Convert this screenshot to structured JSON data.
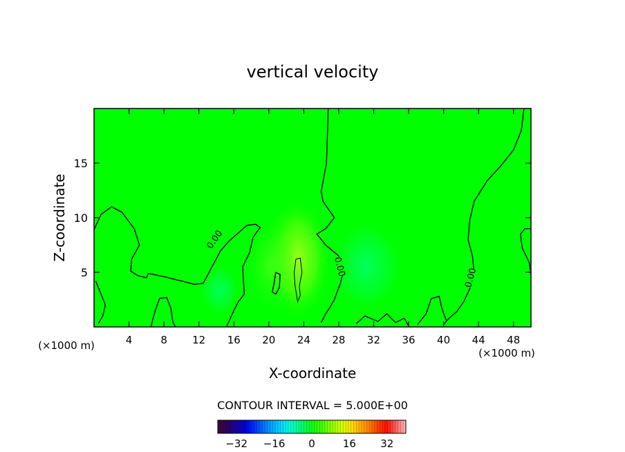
{
  "chart_data": {
    "type": "contour",
    "title": "vertical velocity",
    "xlabel": "X-coordinate",
    "ylabel": "Z-coordinate",
    "x_unit": "(×1000 m)",
    "x_unit_right": "(×1000 m)",
    "xlim": [
      0,
      50
    ],
    "ylim": [
      0,
      20
    ],
    "x_ticks": [
      4,
      8,
      12,
      16,
      20,
      24,
      28,
      32,
      36,
      40,
      44,
      48
    ],
    "y_ticks": [
      5,
      10,
      15
    ],
    "contour_interval_label": "CONTOUR INTERVAL = 5.000E+00",
    "contour_labels": [
      "0.00",
      "0.00",
      "0.00"
    ],
    "colorbar": {
      "range": [
        -40,
        40
      ],
      "ticks": [
        -32,
        -16,
        0,
        16,
        32
      ],
      "colors": [
        "#3a0a3a",
        "#2a0060",
        "#1a00a0",
        "#0000e0",
        "#0030ff",
        "#0070ff",
        "#00a8ff",
        "#00d8ff",
        "#00ffd8",
        "#00ff90",
        "#00ff40",
        "#20ff00",
        "#60ff00",
        "#a0ff00",
        "#d8ff00",
        "#ffe000",
        "#ffb000",
        "#ff8000",
        "#ff4000",
        "#ff1000",
        "#ff6060",
        "#ffb0b0"
      ]
    },
    "field_background_color": "#00ff00",
    "contour_lines": [
      {
        "level": 0,
        "points": [
          [
            0,
            8.9
          ],
          [
            0.8,
            10.3
          ],
          [
            2,
            11
          ],
          [
            3.2,
            10.5
          ],
          [
            4.6,
            9
          ],
          [
            5.2,
            7.5
          ],
          [
            4.3,
            6.2
          ],
          [
            4.2,
            5.1
          ],
          [
            5,
            4.7
          ],
          [
            6,
            4.5
          ],
          [
            6.2,
            4.9
          ],
          [
            8,
            4.6
          ],
          [
            10,
            4.2
          ],
          [
            11.5,
            3.9
          ],
          [
            12.5,
            4
          ],
          [
            13.5,
            5.5
          ],
          [
            14.5,
            7
          ],
          [
            15.5,
            7.9
          ],
          [
            16.5,
            8.6
          ],
          [
            17.5,
            9.3
          ],
          [
            18.5,
            9.4
          ],
          [
            19,
            9.1
          ],
          [
            18.2,
            8.2
          ],
          [
            17.8,
            6.8
          ],
          [
            17,
            5.5
          ],
          [
            17.2,
            3
          ],
          [
            16.5,
            2.3
          ],
          [
            16,
            1.5
          ],
          [
            15.5,
            0.6
          ],
          [
            15.2,
            0.1
          ]
        ]
      },
      {
        "level": 0,
        "points": [
          [
            26.8,
            20
          ],
          [
            26.6,
            15
          ],
          [
            26,
            12.4
          ],
          [
            26.2,
            11.5
          ],
          [
            27.5,
            10
          ],
          [
            26.5,
            9
          ],
          [
            25.5,
            8.5
          ],
          [
            26.5,
            7.5
          ],
          [
            28,
            6.5
          ],
          [
            28.5,
            5
          ],
          [
            28.2,
            4
          ],
          [
            27.5,
            2.5
          ],
          [
            27,
            1.8
          ],
          [
            26.5,
            1.2
          ],
          [
            26,
            0.4
          ]
        ]
      },
      {
        "level": 0,
        "points": [
          [
            49.2,
            20
          ],
          [
            48.9,
            18
          ],
          [
            48,
            16.2
          ],
          [
            46.5,
            14.7
          ],
          [
            45,
            13.4
          ],
          [
            43.5,
            11.5
          ],
          [
            43,
            9.8
          ],
          [
            42.8,
            8
          ],
          [
            43.3,
            6.5
          ],
          [
            43.5,
            5
          ],
          [
            43,
            3.5
          ],
          [
            42.3,
            2.3
          ],
          [
            41.5,
            1.4
          ],
          [
            40.5,
            0.7
          ],
          [
            40,
            0.2
          ]
        ]
      },
      {
        "level": 0,
        "points": [
          [
            50,
            9
          ],
          [
            49.3,
            9
          ],
          [
            48.8,
            8.5
          ],
          [
            49,
            7.2
          ],
          [
            49.8,
            5.9
          ],
          [
            50,
            4.8
          ]
        ]
      },
      {
        "level": 0,
        "points": [
          [
            0.2,
            4.2
          ],
          [
            0.8,
            3
          ],
          [
            1.3,
            2
          ],
          [
            1,
            1
          ],
          [
            0.5,
            0.3
          ]
        ]
      },
      {
        "level": 0,
        "points": [
          [
            6.5,
            0
          ],
          [
            7,
            1.5
          ],
          [
            7.5,
            2.6
          ],
          [
            8.3,
            2.7
          ],
          [
            8.8,
            1.7
          ],
          [
            9,
            0.5
          ],
          [
            9.3,
            0
          ]
        ]
      },
      {
        "level": 0,
        "points": [
          [
            20.8,
            5
          ],
          [
            20.6,
            4
          ],
          [
            20.4,
            3.2
          ],
          [
            20.8,
            3
          ],
          [
            21.2,
            3.6
          ],
          [
            21.3,
            4.8
          ],
          [
            20.8,
            5
          ]
        ]
      },
      {
        "level": 5,
        "points": [
          [
            23.1,
            6.2
          ],
          [
            23.6,
            6.3
          ],
          [
            23.8,
            5
          ],
          [
            23.5,
            3.7
          ],
          [
            23.6,
            2.9
          ],
          [
            23.3,
            2.3
          ],
          [
            23,
            3.8
          ],
          [
            22.9,
            5
          ],
          [
            23.1,
            6.2
          ]
        ]
      },
      {
        "level": 0,
        "points": [
          [
            30,
            0.3
          ],
          [
            31,
            1
          ],
          [
            32.5,
            0.5
          ],
          [
            33.5,
            1.2
          ],
          [
            34.5,
            0.4
          ],
          [
            35.5,
            0.8
          ],
          [
            36,
            0.1
          ]
        ]
      },
      {
        "level": 0,
        "points": [
          [
            37,
            0.2
          ],
          [
            38,
            1.2
          ],
          [
            38.6,
            2.6
          ],
          [
            39.5,
            2.8
          ],
          [
            39.8,
            1.7
          ],
          [
            40.3,
            0.6
          ]
        ]
      }
    ]
  }
}
